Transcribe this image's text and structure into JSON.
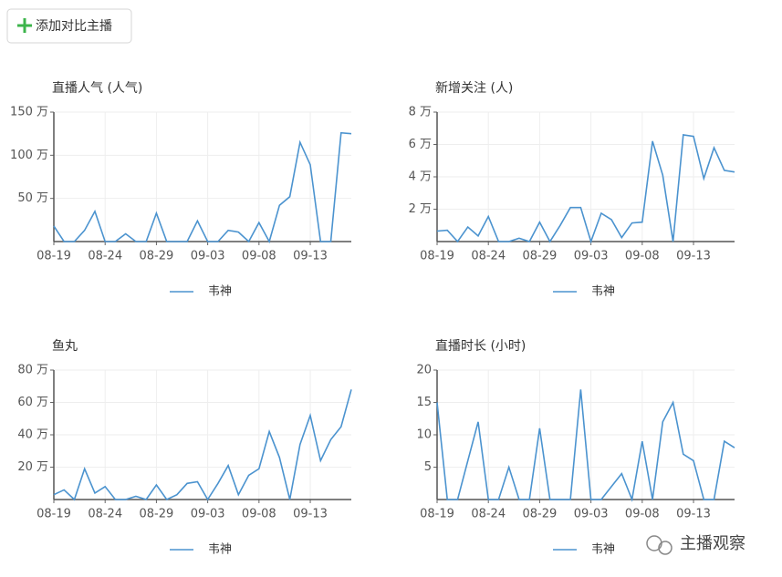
{
  "button_label": "添加对比主播",
  "watermark": "主播观察",
  "chart_data": [
    {
      "type": "line",
      "title": "直播人气 (人气)",
      "categories": [
        "08-19",
        null,
        null,
        null,
        null,
        "08-24",
        null,
        null,
        null,
        null,
        "08-29",
        null,
        null,
        null,
        null,
        "09-03",
        null,
        null,
        null,
        null,
        "09-08",
        null,
        null,
        null,
        null,
        "09-13",
        null,
        null,
        null,
        null
      ],
      "series": [
        {
          "name": "韦神",
          "color": "#4b93cf",
          "values": [
            18,
            0,
            0,
            13,
            35,
            0,
            0,
            9,
            0,
            0,
            33,
            0,
            0,
            0,
            24,
            0,
            0,
            13,
            11,
            0,
            22,
            0,
            42,
            52,
            115,
            89,
            0,
            0,
            126,
            125
          ]
        }
      ],
      "ylim": [
        0,
        150
      ],
      "yticks": [
        {
          "value": 50,
          "label": "50 万"
        },
        {
          "value": 100,
          "label": "100 万"
        },
        {
          "value": 150,
          "label": "150 万"
        }
      ],
      "grid": true,
      "legend": "bottom"
    },
    {
      "type": "line",
      "title": "新增关注 (人)",
      "categories": [
        "08-19",
        null,
        null,
        null,
        null,
        "08-24",
        null,
        null,
        null,
        null,
        "08-29",
        null,
        null,
        null,
        null,
        "09-03",
        null,
        null,
        null,
        null,
        "09-08",
        null,
        null,
        null,
        null,
        "09-13",
        null,
        null,
        null,
        null
      ],
      "series": [
        {
          "name": "韦神",
          "color": "#4b93cf",
          "values": [
            0.65,
            0.7,
            0,
            0.9,
            0.35,
            1.55,
            0,
            0,
            0.2,
            0,
            1.2,
            0,
            1.0,
            2.1,
            2.1,
            0,
            1.75,
            1.35,
            0.25,
            1.15,
            1.2,
            6.2,
            4.1,
            0,
            6.6,
            6.5,
            3.9,
            5.8,
            4.4,
            4.3
          ]
        }
      ],
      "ylim": [
        0,
        8
      ],
      "yticks": [
        {
          "value": 2,
          "label": "2 万"
        },
        {
          "value": 4,
          "label": "4 万"
        },
        {
          "value": 6,
          "label": "6 万"
        },
        {
          "value": 8,
          "label": "8 万"
        }
      ],
      "grid": true,
      "legend": "bottom"
    },
    {
      "type": "line",
      "title": "鱼丸",
      "categories": [
        "08-19",
        null,
        null,
        null,
        null,
        "08-24",
        null,
        null,
        null,
        null,
        "08-29",
        null,
        null,
        null,
        null,
        "09-03",
        null,
        null,
        null,
        null,
        "09-08",
        null,
        null,
        null,
        null,
        "09-13",
        null,
        null,
        null,
        null
      ],
      "series": [
        {
          "name": "韦神",
          "color": "#4b93cf",
          "values": [
            3,
            6,
            0,
            19,
            4,
            8,
            0,
            0,
            2,
            0,
            9,
            0,
            3,
            10,
            11,
            0,
            10,
            21,
            3,
            15,
            19,
            42,
            26,
            0,
            34,
            52,
            24,
            37,
            45,
            68
          ]
        }
      ],
      "ylim": [
        0,
        80
      ],
      "yticks": [
        {
          "value": 20,
          "label": "20 万"
        },
        {
          "value": 40,
          "label": "40 万"
        },
        {
          "value": 60,
          "label": "60 万"
        },
        {
          "value": 80,
          "label": "80 万"
        }
      ],
      "grid": true,
      "legend": "bottom"
    },
    {
      "type": "line",
      "title": "直播时长 (小时)",
      "categories": [
        "08-19",
        null,
        null,
        null,
        null,
        "08-24",
        null,
        null,
        null,
        null,
        "08-29",
        null,
        null,
        null,
        null,
        "09-03",
        null,
        null,
        null,
        null,
        "09-08",
        null,
        null,
        null,
        null,
        "09-13",
        null,
        null,
        null,
        null
      ],
      "series": [
        {
          "name": "韦神",
          "color": "#4b93cf",
          "values": [
            15,
            0,
            0,
            6,
            12,
            0,
            0,
            5,
            0,
            0,
            11,
            0,
            0,
            0,
            17,
            0,
            0,
            2,
            4,
            0,
            9,
            0,
            12,
            15,
            7,
            6,
            0,
            0,
            9,
            8
          ]
        }
      ],
      "ylim": [
        0,
        20
      ],
      "yticks": [
        5,
        10,
        15,
        20
      ],
      "grid": true,
      "legend": "bottom"
    }
  ]
}
